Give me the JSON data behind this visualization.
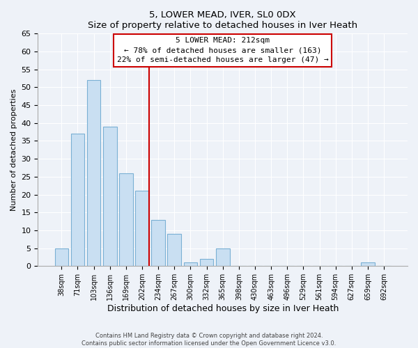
{
  "title": "5, LOWER MEAD, IVER, SL0 0DX",
  "subtitle": "Size of property relative to detached houses in Iver Heath",
  "xlabel": "Distribution of detached houses by size in Iver Heath",
  "ylabel": "Number of detached properties",
  "bar_labels": [
    "38sqm",
    "71sqm",
    "103sqm",
    "136sqm",
    "169sqm",
    "202sqm",
    "234sqm",
    "267sqm",
    "300sqm",
    "332sqm",
    "365sqm",
    "398sqm",
    "430sqm",
    "463sqm",
    "496sqm",
    "529sqm",
    "561sqm",
    "594sqm",
    "627sqm",
    "659sqm",
    "692sqm"
  ],
  "bar_values": [
    5,
    37,
    52,
    39,
    26,
    21,
    13,
    9,
    1,
    2,
    5,
    0,
    0,
    0,
    0,
    0,
    0,
    0,
    0,
    1,
    0
  ],
  "bar_color": "#c9dff2",
  "bar_edge_color": "#7ab0d4",
  "vline_color": "#cc0000",
  "vline_index": 5,
  "annotation_title": "5 LOWER MEAD: 212sqm",
  "annotation_line1": "← 78% of detached houses are smaller (163)",
  "annotation_line2": "22% of semi-detached houses are larger (47) →",
  "annotation_box_color": "#ffffff",
  "annotation_box_edge": "#cc0000",
  "ylim": [
    0,
    65
  ],
  "yticks": [
    0,
    5,
    10,
    15,
    20,
    25,
    30,
    35,
    40,
    45,
    50,
    55,
    60,
    65
  ],
  "footer_line1": "Contains HM Land Registry data © Crown copyright and database right 2024.",
  "footer_line2": "Contains public sector information licensed under the Open Government Licence v3.0.",
  "bg_color": "#eef2f8"
}
